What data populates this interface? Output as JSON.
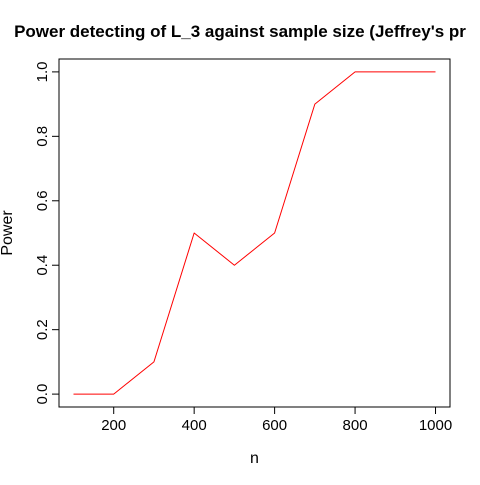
{
  "chart_data": {
    "type": "line",
    "title": "Power detecting of L_3 against sample size (Jeffrey's pr",
    "xlabel": "n",
    "ylabel": "Power",
    "x": [
      100,
      200,
      300,
      400,
      500,
      600,
      700,
      800,
      900,
      1000
    ],
    "series": [
      {
        "values": [
          0.0,
          0.0,
          0.1,
          0.5,
          0.4,
          0.5,
          0.9,
          1.0,
          1.0,
          1.0
        ],
        "color": "#ff0000"
      }
    ],
    "xlim": [
      64,
      1036
    ],
    "ylim": [
      -0.04,
      1.04
    ],
    "x_ticks": [
      200,
      400,
      600,
      800,
      1000
    ],
    "x_tick_labels": [
      "200",
      "400",
      "600",
      "800",
      "1000"
    ],
    "y_ticks": [
      0.0,
      0.2,
      0.4,
      0.6,
      0.8,
      1.0
    ],
    "y_tick_labels": [
      "0.0",
      "0.2",
      "0.4",
      "0.6",
      "0.8",
      "1.0"
    ],
    "grid": false,
    "legend": "none",
    "axis_color": "#000000",
    "background": "#ffffff"
  }
}
